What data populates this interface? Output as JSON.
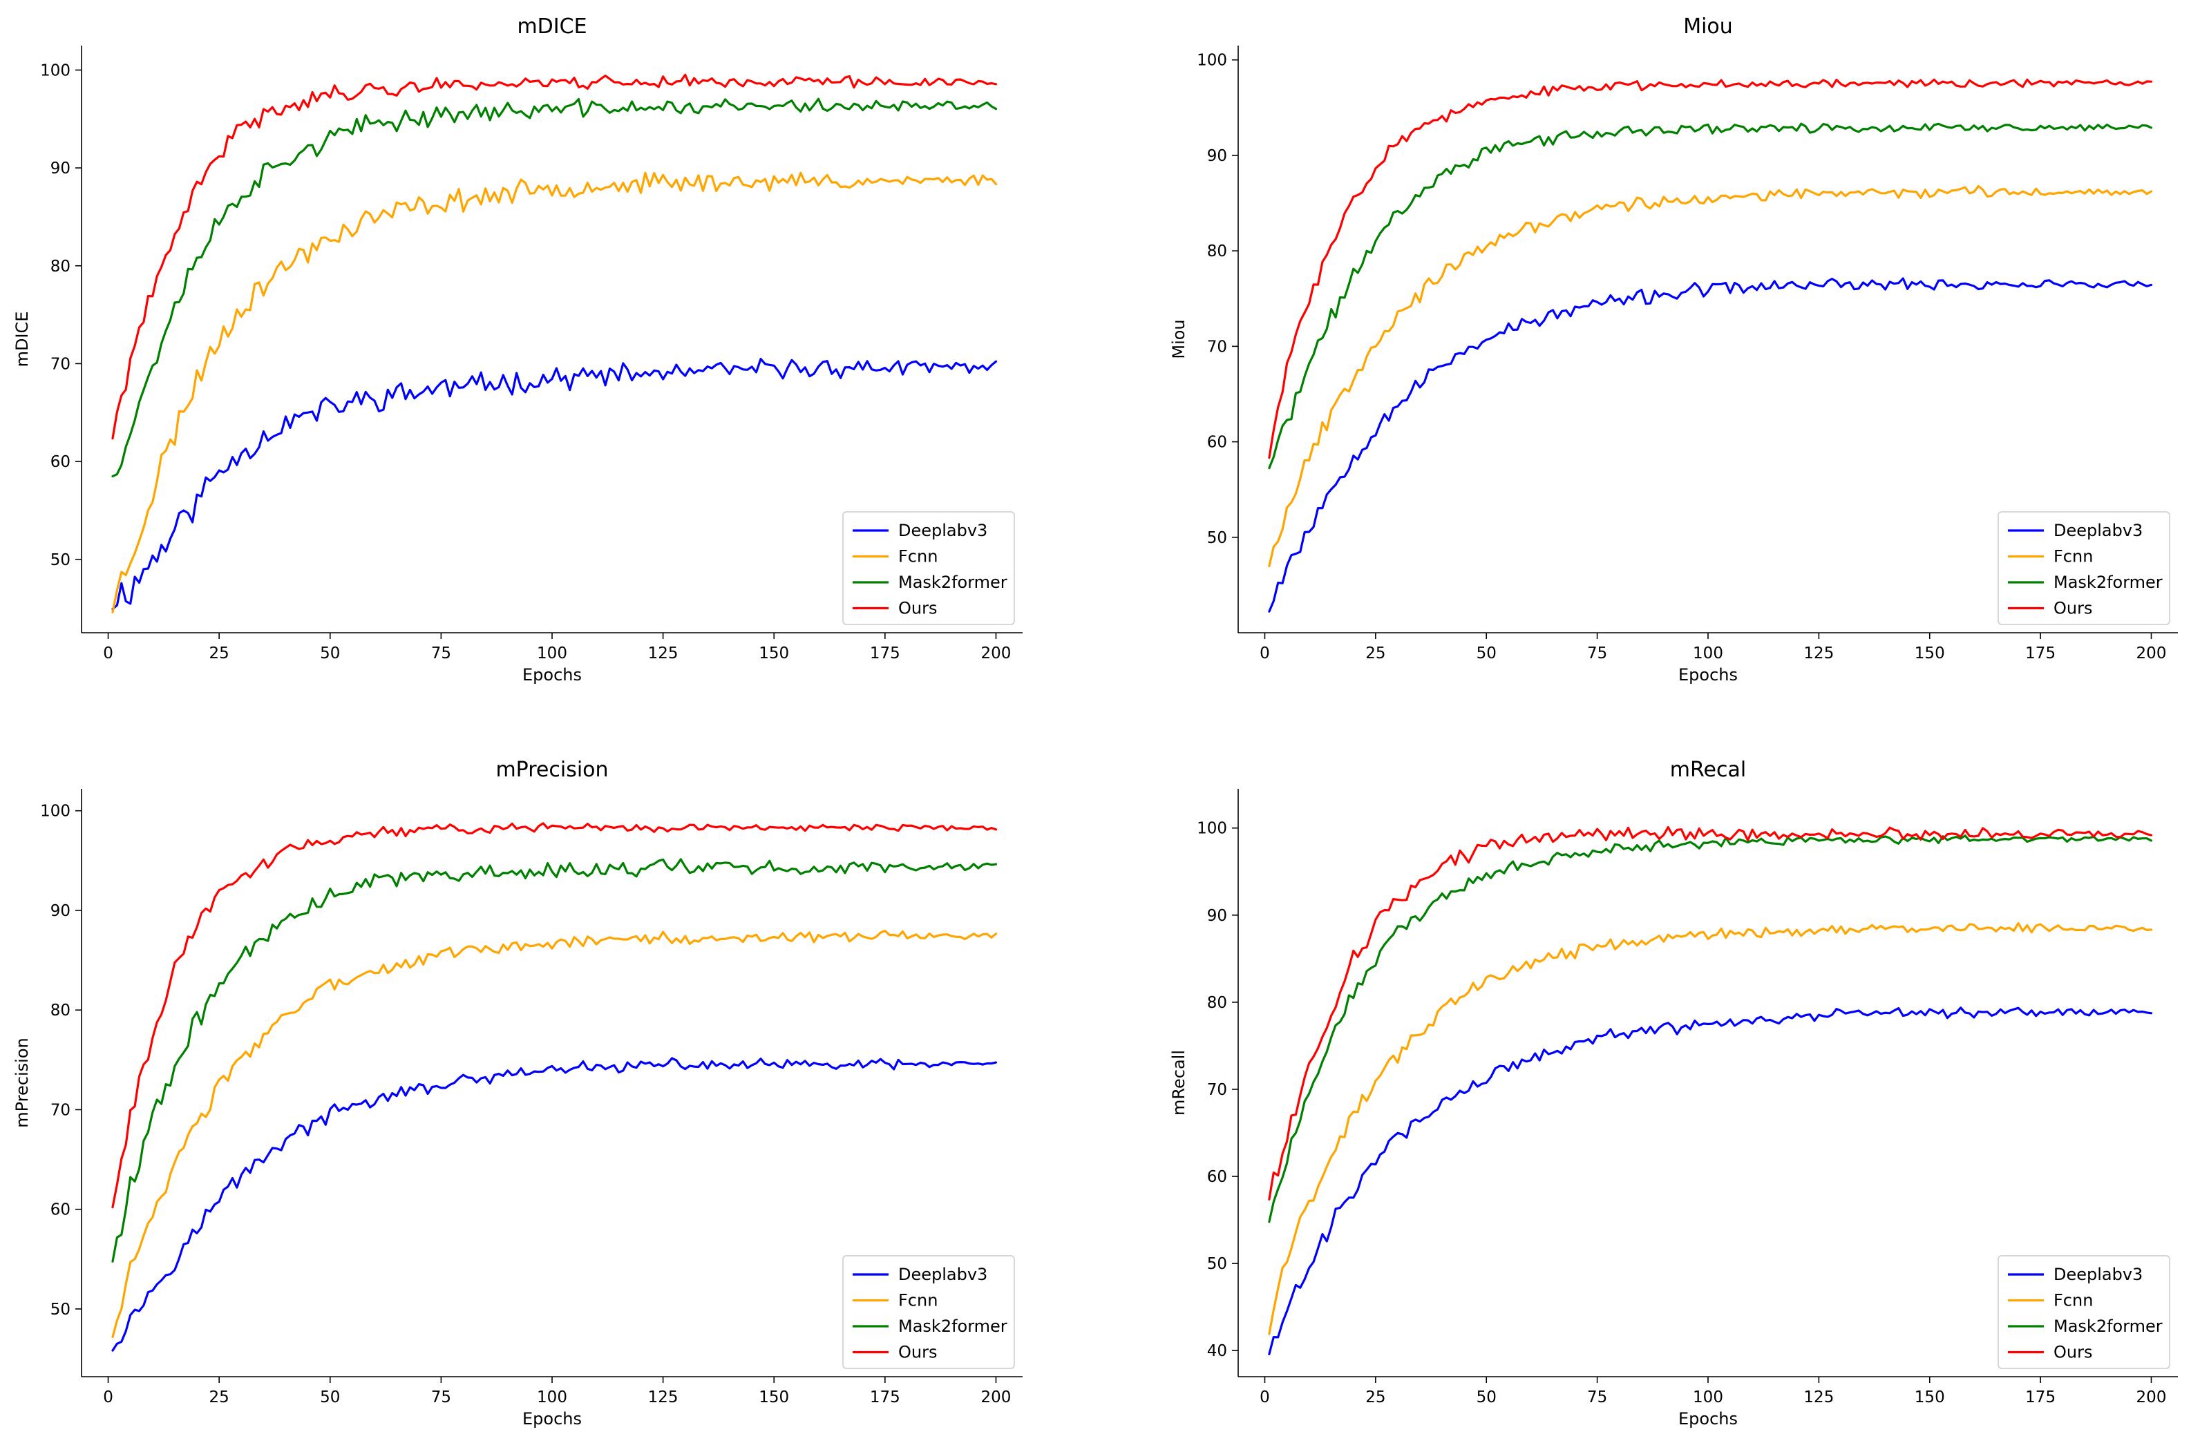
{
  "figure": {
    "legend_placement": "lower-right",
    "colors": {
      "Deeplabv3": "#0000ff",
      "Fcnn": "#ffa500",
      "Mask2former": "#008000",
      "Ours": "#ff0000"
    }
  },
  "chart_data": [
    {
      "type": "line",
      "title": "mDICE",
      "xlabel": "Epochs",
      "ylabel": "mDICE",
      "xlim": [
        -6,
        206
      ],
      "ylim": [
        42.5,
        102.5
      ],
      "xticks": [
        0,
        25,
        50,
        75,
        100,
        125,
        150,
        175,
        200
      ],
      "yticks": [
        50,
        60,
        70,
        80,
        90,
        100
      ],
      "grid": false,
      "legend": [
        "Deeplabv3",
        "Fcnn",
        "Mask2former",
        "Ours"
      ],
      "series": [
        {
          "name": "Deeplabv3",
          "color": "#0000ff",
          "x": [
            1,
            5,
            10,
            15,
            20,
            25,
            30,
            35,
            40,
            50,
            60,
            75,
            100,
            125,
            150,
            175,
            200
          ],
          "y": [
            46,
            47,
            50,
            53,
            56,
            59,
            61,
            62.5,
            64,
            65.5,
            66.5,
            67.5,
            68.5,
            69,
            69.5,
            69.6,
            69.7
          ],
          "noise": 1.6,
          "seed": 11
        },
        {
          "name": "Fcnn",
          "color": "#ffa500",
          "x": [
            1,
            5,
            10,
            15,
            20,
            25,
            30,
            40,
            50,
            60,
            75,
            100,
            125,
            150,
            175,
            200
          ],
          "y": [
            45.5,
            50,
            57,
            63,
            68.5,
            72.5,
            76,
            80,
            83,
            85,
            86.5,
            88,
            88.5,
            88.6,
            88.7,
            88.8
          ],
          "noise": 1.5,
          "seed": 23
        },
        {
          "name": "Mask2former",
          "color": "#008000",
          "x": [
            1,
            5,
            10,
            15,
            20,
            25,
            30,
            40,
            50,
            60,
            75,
            100,
            125,
            150,
            175,
            200
          ],
          "y": [
            59,
            63,
            70,
            76,
            81,
            84.5,
            87.5,
            91,
            93,
            94.5,
            95.5,
            96,
            96.2,
            96.3,
            96.3,
            96.3
          ],
          "noise": 1.3,
          "seed": 37
        },
        {
          "name": "Ours",
          "color": "#ff0000",
          "x": [
            1,
            5,
            10,
            15,
            20,
            25,
            30,
            40,
            50,
            60,
            75,
            100,
            125,
            150,
            175,
            200
          ],
          "y": [
            62.5,
            70.5,
            77,
            83,
            88,
            91.5,
            94,
            96.5,
            97.5,
            98,
            98.5,
            98.8,
            98.8,
            98.8,
            98.8,
            98.8
          ],
          "noise": 1.0,
          "seed": 41
        }
      ]
    },
    {
      "type": "line",
      "title": "Miou",
      "xlabel": "Epochs",
      "ylabel": "Miou",
      "xlim": [
        -6,
        206
      ],
      "ylim": [
        40,
        101.5
      ],
      "xticks": [
        0,
        25,
        50,
        75,
        100,
        125,
        150,
        175,
        200
      ],
      "yticks": [
        50,
        60,
        70,
        80,
        90,
        100
      ],
      "grid": false,
      "legend": [
        "Deeplabv3",
        "Fcnn",
        "Mask2former",
        "Ours"
      ],
      "series": [
        {
          "name": "Deeplabv3",
          "color": "#0000ff",
          "x": [
            1,
            5,
            10,
            15,
            20,
            25,
            30,
            40,
            50,
            60,
            75,
            100,
            125,
            150,
            175,
            200
          ],
          "y": [
            43,
            47,
            51,
            55,
            58.5,
            61.5,
            64,
            68,
            71,
            72.5,
            74.5,
            76,
            76.5,
            76.5,
            76.5,
            76.5
          ],
          "noise": 1.0,
          "seed": 53
        },
        {
          "name": "Fcnn",
          "color": "#ffa500",
          "x": [
            1,
            5,
            10,
            15,
            20,
            25,
            30,
            40,
            50,
            60,
            75,
            100,
            125,
            150,
            175,
            200
          ],
          "y": [
            47.5,
            53,
            58.5,
            63,
            67,
            70.5,
            73.5,
            77.5,
            80.5,
            82.5,
            84.5,
            85.5,
            86,
            86.2,
            86.2,
            86.2
          ],
          "noise": 0.9,
          "seed": 67
        },
        {
          "name": "Mask2former",
          "color": "#008000",
          "x": [
            1,
            5,
            10,
            15,
            20,
            25,
            30,
            40,
            50,
            60,
            75,
            100,
            125,
            150,
            175,
            200
          ],
          "y": [
            57.5,
            62,
            68,
            73,
            77.5,
            81,
            84,
            88,
            90.5,
            91.5,
            92.3,
            92.8,
            92.9,
            92.9,
            92.9,
            92.9
          ],
          "noise": 0.8,
          "seed": 71
        },
        {
          "name": "Ours",
          "color": "#ff0000",
          "x": [
            1,
            5,
            10,
            15,
            20,
            25,
            30,
            40,
            50,
            60,
            75,
            100,
            125,
            150,
            175,
            200
          ],
          "y": [
            58.5,
            68,
            75,
            80.5,
            85.5,
            89,
            91.5,
            94,
            95.5,
            96.5,
            97.2,
            97.5,
            97.6,
            97.6,
            97.6,
            97.6
          ],
          "noise": 0.7,
          "seed": 83
        }
      ]
    },
    {
      "type": "line",
      "title": "mPrecision",
      "xlabel": "Epochs",
      "ylabel": "mPrecision",
      "xlim": [
        -6,
        206
      ],
      "ylim": [
        43.2,
        102.2
      ],
      "xticks": [
        0,
        25,
        50,
        75,
        100,
        125,
        150,
        175,
        200
      ],
      "yticks": [
        50,
        60,
        70,
        80,
        90,
        100
      ],
      "grid": false,
      "legend": [
        "Deeplabv3",
        "Fcnn",
        "Mask2former",
        "Ours"
      ],
      "series": [
        {
          "name": "Deeplabv3",
          "color": "#0000ff",
          "x": [
            1,
            5,
            10,
            15,
            20,
            25,
            30,
            40,
            50,
            60,
            75,
            100,
            125,
            150,
            175,
            200
          ],
          "y": [
            46.5,
            49,
            52,
            55,
            58,
            61,
            63.5,
            67,
            69.5,
            71,
            72.5,
            74,
            74.5,
            74.5,
            74.5,
            74.5
          ],
          "noise": 0.9,
          "seed": 97
        },
        {
          "name": "Fcnn",
          "color": "#ffa500",
          "x": [
            1,
            5,
            10,
            15,
            20,
            25,
            30,
            40,
            50,
            60,
            75,
            100,
            125,
            150,
            175,
            200
          ],
          "y": [
            47.5,
            54,
            59.5,
            64,
            68.5,
            72,
            75,
            79.5,
            82.5,
            84,
            85.5,
            86.8,
            87.2,
            87.3,
            87.4,
            87.4
          ],
          "noise": 0.9,
          "seed": 103
        },
        {
          "name": "Mask2former",
          "color": "#008000",
          "x": [
            1,
            5,
            10,
            15,
            20,
            25,
            30,
            40,
            50,
            60,
            75,
            100,
            125,
            150,
            175,
            200
          ],
          "y": [
            55.5,
            62,
            69,
            74,
            79,
            82.5,
            85.5,
            89,
            91.5,
            93,
            93.5,
            94,
            94.3,
            94.3,
            94.3,
            94.3
          ],
          "noise": 1.1,
          "seed": 109
        },
        {
          "name": "Ours",
          "color": "#ff0000",
          "x": [
            1,
            5,
            10,
            15,
            20,
            25,
            30,
            40,
            50,
            60,
            75,
            100,
            125,
            150,
            175,
            200
          ],
          "y": [
            60.5,
            69.5,
            77.5,
            84,
            88.5,
            91.5,
            93.5,
            96,
            97.2,
            97.8,
            98.2,
            98.3,
            98.3,
            98.3,
            98.3,
            98.3
          ],
          "noise": 0.7,
          "seed": 113
        }
      ]
    },
    {
      "type": "line",
      "title": "mRecal",
      "xlabel": "Epochs",
      "ylabel": "mRecall",
      "xlim": [
        -6,
        206
      ],
      "ylim": [
        37,
        104.5
      ],
      "xticks": [
        0,
        25,
        50,
        75,
        100,
        125,
        150,
        175,
        200
      ],
      "yticks": [
        40,
        50,
        60,
        70,
        80,
        90,
        100
      ],
      "grid": false,
      "legend": [
        "Deeplabv3",
        "Fcnn",
        "Mask2former",
        "Ours"
      ],
      "series": [
        {
          "name": "Deeplabv3",
          "color": "#0000ff",
          "x": [
            1,
            5,
            10,
            15,
            20,
            25,
            30,
            40,
            50,
            60,
            75,
            100,
            125,
            150,
            175,
            200
          ],
          "y": [
            39.8,
            45,
            50,
            54.5,
            58.5,
            62,
            64.5,
            68.5,
            71.5,
            73.5,
            76,
            77.5,
            78.5,
            78.8,
            78.9,
            78.9
          ],
          "noise": 1.0,
          "seed": 127
        },
        {
          "name": "Fcnn",
          "color": "#ffa500",
          "x": [
            1,
            5,
            10,
            15,
            20,
            25,
            30,
            40,
            50,
            60,
            75,
            100,
            125,
            150,
            175,
            200
          ],
          "y": [
            42.5,
            51,
            57,
            62.5,
            67,
            71,
            74,
            79,
            82.5,
            84.5,
            86.5,
            87.8,
            88.3,
            88.4,
            88.5,
            88.5
          ],
          "noise": 0.9,
          "seed": 131
        },
        {
          "name": "Mask2former",
          "color": "#008000",
          "x": [
            1,
            5,
            10,
            15,
            20,
            25,
            30,
            40,
            50,
            60,
            75,
            100,
            125,
            150,
            175,
            200
          ],
          "y": [
            55,
            62,
            70,
            76,
            81,
            85,
            88,
            92,
            94.5,
            96,
            97.5,
            98.3,
            98.6,
            98.7,
            98.7,
            98.7
          ],
          "noise": 0.8,
          "seed": 137
        },
        {
          "name": "Ours",
          "color": "#ff0000",
          "x": [
            1,
            5,
            10,
            15,
            20,
            25,
            30,
            40,
            50,
            60,
            75,
            100,
            125,
            150,
            175,
            200
          ],
          "y": [
            57.5,
            64.5,
            72,
            79,
            85,
            89,
            92,
            95.5,
            98,
            99,
            99.3,
            99.3,
            99.3,
            99.3,
            99.3,
            99.3
          ],
          "noise": 1.0,
          "seed": 139
        }
      ]
    }
  ]
}
